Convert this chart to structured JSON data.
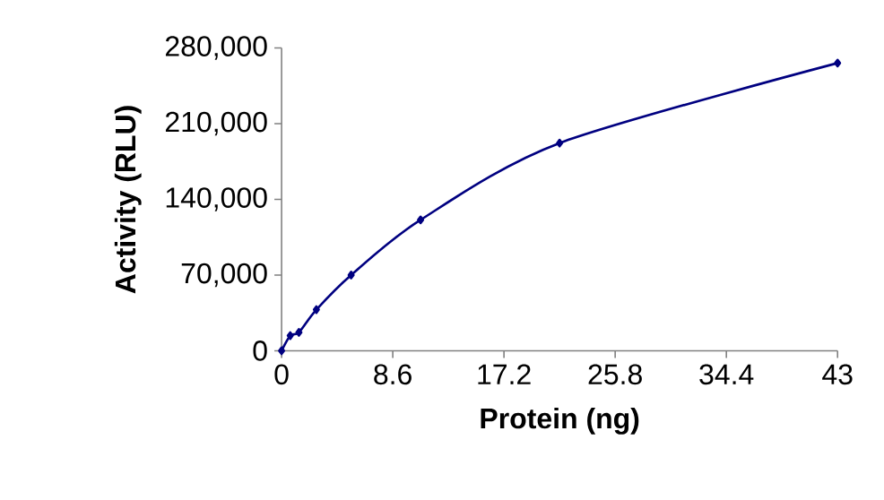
{
  "chart_data": {
    "type": "line",
    "xlabel": "Protein (ng)",
    "ylabel": "Activity (RLU)",
    "x": [
      0,
      0.67,
      1.34,
      2.69,
      5.38,
      10.75,
      21.5,
      43
    ],
    "series": [
      {
        "color": "#000080",
        "values": [
          0,
          14000,
          17000,
          38000,
          70000,
          121000,
          192000,
          266000
        ]
      }
    ],
    "xlim": [
      0,
      43
    ],
    "xticks": [
      0,
      8.6,
      17.2,
      25.8,
      34.4,
      43
    ],
    "ylim": [
      0,
      280000
    ],
    "yticks": [
      0,
      {
        "value": 70000,
        "label": "70,000"
      },
      {
        "value": 140000,
        "label": "140,000"
      },
      {
        "value": 210000,
        "label": "210,000"
      },
      {
        "value": 280000,
        "label": "280,000"
      }
    ],
    "marker": "diamond",
    "line_style": "solid"
  }
}
